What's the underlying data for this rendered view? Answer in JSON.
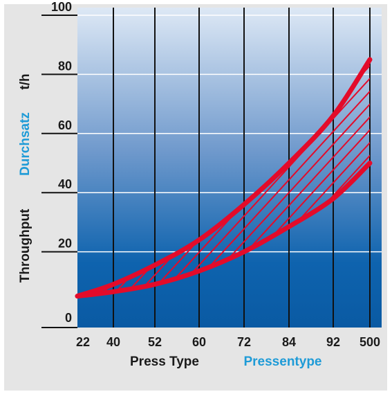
{
  "chart_data": {
    "type": "area",
    "title": "",
    "xlabel": "Press Type",
    "xlabel_de": "Pressentype",
    "ylabel": "Throughput",
    "ylabel_de": "Durchsatz",
    "yunit": "t/h",
    "categories": [
      "22",
      "40",
      "52",
      "60",
      "72",
      "84",
      "92",
      "500"
    ],
    "yticks": [
      "0",
      "20",
      "40",
      "60",
      "80",
      "100"
    ],
    "ylim": [
      0,
      100
    ],
    "grid": true,
    "series": [
      {
        "values": [
          5,
          9,
          15.5,
          24,
          36,
          50,
          66,
          85
        ]
      },
      {
        "values": [
          5,
          6.5,
          9,
          13.5,
          20,
          28.5,
          38,
          50
        ]
      }
    ],
    "colors": {
      "band": "#e30b2a",
      "background_top": "#dbe6f4",
      "background_bottom": "#0a5ea8",
      "frame": "#e5e5e5",
      "gridline": "#ffffff",
      "vertical_line": "#111111"
    }
  }
}
